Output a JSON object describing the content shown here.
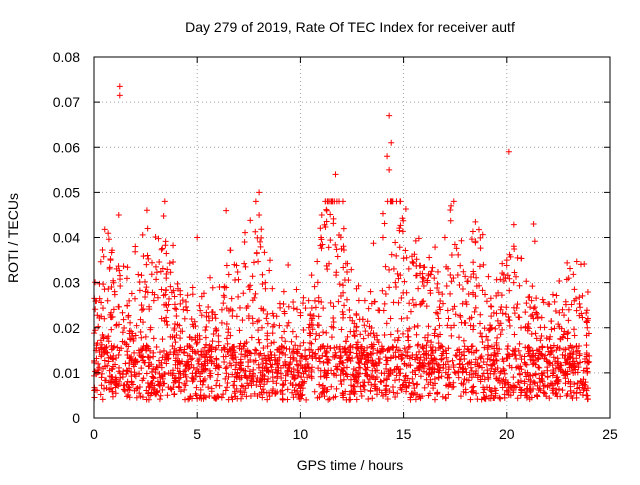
{
  "chart_data": {
    "type": "scatter",
    "title": "Day 279 of 2019, Rate Of TEC Index for receiver autf",
    "xlabel": "GPS time / hours",
    "ylabel": "ROTI / TECUs",
    "xlim": [
      0,
      25
    ],
    "ylim": [
      0,
      0.08
    ],
    "x_ticks": [
      0,
      5,
      10,
      15,
      20,
      25
    ],
    "x_tick_labels": [
      "0",
      "5",
      "10",
      "15",
      "20",
      "25"
    ],
    "y_ticks": [
      0,
      0.01,
      0.02,
      0.03,
      0.04,
      0.05,
      0.06,
      0.07,
      0.08
    ],
    "y_tick_labels": [
      "0",
      "0.01",
      "0.02",
      "0.03",
      "0.04",
      "0.05",
      "0.06",
      "0.07",
      "0.08"
    ],
    "grid": true,
    "marker": "+",
    "colors": {
      "points": "#ff0000",
      "grid": "#a0a0a0",
      "axis": "#000000"
    },
    "series": [
      {
        "name": "ROTI",
        "x": [
          0.2,
          0.5,
          0.8,
          1.0,
          1.2,
          1.4,
          1.7,
          2.0,
          2.3,
          2.6,
          2.9,
          3.2,
          3.5,
          3.8,
          4.1,
          4.4,
          4.7,
          5.0,
          5.3,
          5.6,
          5.9,
          6.2,
          6.5,
          6.8,
          7.1,
          7.4,
          7.7,
          8.0,
          8.3,
          8.6,
          8.9,
          9.2,
          9.5,
          9.8,
          10.1,
          10.4,
          10.7,
          11.0,
          11.3,
          11.6,
          11.9,
          12.2,
          12.5,
          12.8,
          13.1,
          13.4,
          13.7,
          14.0,
          14.3,
          14.6,
          14.9,
          15.2,
          15.5,
          15.8,
          16.1,
          16.4,
          16.7,
          17.0,
          17.3,
          17.6,
          17.9,
          18.2,
          18.5,
          18.8,
          19.1,
          19.4,
          19.7,
          20.0,
          20.3,
          20.6,
          20.9,
          21.2,
          21.5,
          21.8,
          22.1,
          22.4,
          22.7,
          23.0,
          23.3,
          23.6,
          23.9,
          1.25,
          1.25,
          14.3,
          14.4,
          20.1,
          14.2,
          11.7,
          17.3,
          21.3,
          8.0
        ],
        "y": [
          0.012,
          0.022,
          0.035,
          0.028,
          0.045,
          0.019,
          0.011,
          0.038,
          0.015,
          0.042,
          0.026,
          0.009,
          0.031,
          0.018,
          0.007,
          0.022,
          0.013,
          0.04,
          0.008,
          0.016,
          0.011,
          0.024,
          0.019,
          0.034,
          0.012,
          0.009,
          0.021,
          0.045,
          0.03,
          0.014,
          0.01,
          0.028,
          0.012,
          0.018,
          0.011,
          0.026,
          0.014,
          0.04,
          0.033,
          0.02,
          0.012,
          0.017,
          0.006,
          0.01,
          0.015,
          0.028,
          0.012,
          0.04,
          0.055,
          0.03,
          0.022,
          0.018,
          0.025,
          0.032,
          0.014,
          0.011,
          0.009,
          0.04,
          0.02,
          0.015,
          0.011,
          0.022,
          0.013,
          0.018,
          0.009,
          0.012,
          0.024,
          0.035,
          0.015,
          0.011,
          0.02,
          0.026,
          0.013,
          0.01,
          0.018,
          0.009,
          0.014,
          0.031,
          0.012,
          0.008,
          0.02,
          0.0735,
          0.0715,
          0.067,
          0.061,
          0.059,
          0.058,
          0.054,
          0.047,
          0.043,
          0.05
        ]
      }
    ]
  }
}
